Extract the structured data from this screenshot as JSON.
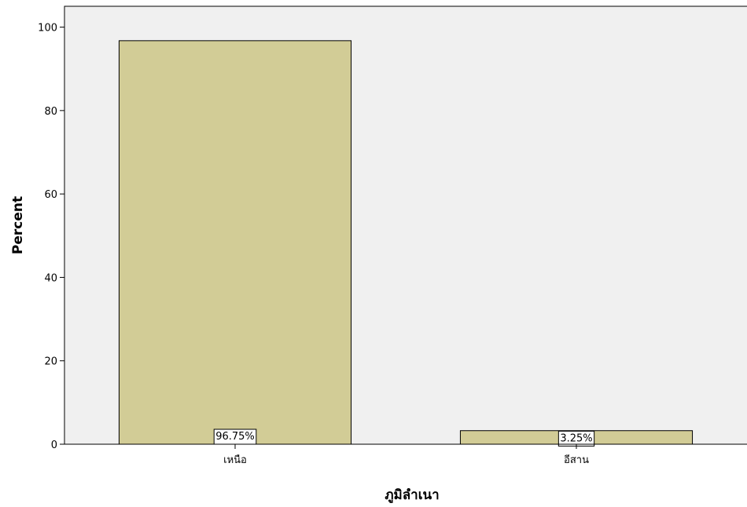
{
  "chart_data": {
    "type": "bar",
    "categories": [
      "เหนือ",
      "อีสาน"
    ],
    "values": [
      96.75,
      3.25
    ],
    "data_labels": [
      "96.75%",
      "3.25%"
    ],
    "xlabel": "ภูมิลำเนา",
    "ylabel": "Percent",
    "ylim": [
      0,
      105
    ],
    "yticks": [
      0,
      20,
      40,
      60,
      80,
      100
    ],
    "grid": false,
    "colors": {
      "bar_fill": "#d2cc96",
      "plot_background": "#f0f0f0",
      "axis": "#000000"
    }
  }
}
